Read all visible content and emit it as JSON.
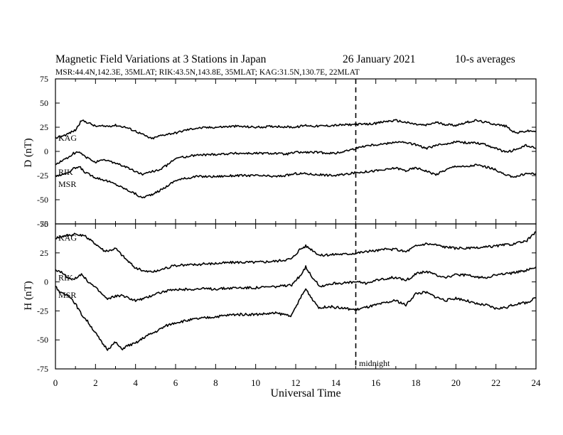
{
  "header": {
    "title": "Magnetic Field Variations at 3 Stations in Japan",
    "date": "26 January  2021",
    "averaging": "10-s averages",
    "stations_line": "MSR:44.4N,142.3E, 35MLAT;  RIK:43.5N,143.8E, 35MLAT;  KAG:31.5N,130.7E, 22MLAT"
  },
  "chart_data": [
    {
      "type": "line",
      "panel": "top",
      "ylabel": "D (nT)",
      "ylim": [
        -75,
        75
      ],
      "yticks": [
        75,
        50,
        25,
        0,
        -25,
        -50,
        -75
      ],
      "xlim": [
        0,
        24
      ],
      "series": [
        {
          "name": "KAG",
          "x": [
            0,
            0.5,
            1,
            1.3,
            1.6,
            2,
            2.5,
            3,
            3.5,
            4,
            4.5,
            4.8,
            5.2,
            5.6,
            6,
            6.5,
            7,
            8,
            9,
            10,
            11,
            12,
            12.5,
            13,
            14,
            15,
            15.5,
            16,
            16.5,
            17,
            17.5,
            18,
            18.5,
            19,
            19.5,
            20,
            20.5,
            21,
            21.5,
            22,
            22.5,
            23,
            23.5,
            24
          ],
          "y": [
            14,
            17,
            22,
            32,
            30,
            26,
            26,
            27,
            25,
            21,
            16,
            13,
            16,
            18,
            19,
            22,
            24,
            25,
            26,
            25,
            26,
            25,
            27,
            26,
            27,
            28,
            28,
            29,
            31,
            32,
            30,
            28,
            27,
            30,
            28,
            27,
            30,
            32,
            30,
            28,
            26,
            19,
            21,
            21
          ]
        },
        {
          "name": "RIK",
          "x": [
            0,
            0.3,
            0.6,
            0.9,
            1.2,
            1.5,
            2,
            2.5,
            3,
            3.5,
            4,
            4.4,
            4.8,
            5.2,
            5.6,
            6,
            7,
            8,
            9,
            10,
            11,
            11.5,
            12,
            12.5,
            13,
            14,
            15,
            15.5,
            16,
            16.5,
            17,
            17.5,
            18,
            18.5,
            19,
            19.5,
            20,
            20.5,
            21,
            21.5,
            22,
            22.5,
            23,
            23.5,
            24
          ],
          "y": [
            -14,
            -10,
            -7,
            -2,
            -1,
            -6,
            -11,
            -9,
            -12,
            -16,
            -21,
            -24,
            -21,
            -19,
            -14,
            -7,
            -4,
            -3,
            -2,
            -2,
            -2,
            -3,
            -1,
            -1,
            -1,
            -2,
            3,
            6,
            7,
            8,
            10,
            9,
            7,
            3,
            6,
            8,
            10,
            9,
            9,
            7,
            3,
            -1,
            2,
            6,
            3
          ]
        },
        {
          "name": "MSR",
          "x": [
            0,
            0.3,
            0.6,
            0.9,
            1.2,
            1.5,
            2,
            2.5,
            3,
            3.5,
            4,
            4.3,
            4.6,
            5,
            5.5,
            6,
            6.5,
            7,
            8,
            9,
            10,
            11,
            11.5,
            12,
            12.5,
            13,
            14,
            15,
            15.5,
            16,
            16.5,
            17,
            17.5,
            18,
            18.5,
            19,
            19.5,
            20,
            20.5,
            21,
            21.5,
            22,
            22.5,
            23,
            23.5,
            24
          ],
          "y": [
            -25,
            -24,
            -22,
            -18,
            -16,
            -22,
            -27,
            -30,
            -34,
            -39,
            -44,
            -48,
            -46,
            -43,
            -37,
            -30,
            -28,
            -26,
            -26,
            -25,
            -25,
            -26,
            -25,
            -23,
            -23,
            -24,
            -25,
            -22,
            -21,
            -20,
            -19,
            -17,
            -20,
            -17,
            -20,
            -24,
            -19,
            -15,
            -16,
            -14,
            -16,
            -19,
            -25,
            -26,
            -23,
            -23
          ]
        }
      ],
      "annotations": []
    },
    {
      "type": "line",
      "panel": "bottom",
      "ylabel": "H (nT)",
      "xlabel": "Universal Time",
      "ylim": [
        -75,
        50
      ],
      "yticks": [
        50,
        25,
        0,
        -25,
        -50,
        -75
      ],
      "xlim": [
        0,
        24
      ],
      "xticks": [
        0,
        2,
        4,
        6,
        8,
        10,
        12,
        14,
        16,
        18,
        20,
        22,
        24
      ],
      "series": [
        {
          "name": "KAG",
          "x": [
            0,
            0.5,
            1,
            1.5,
            2,
            2.5,
            3,
            3.5,
            4,
            4.5,
            5,
            5.5,
            6,
            7,
            8,
            9,
            10,
            11,
            11.8,
            12.2,
            12.5,
            12.8,
            13.2,
            13.6,
            14,
            14.5,
            15,
            15.5,
            16,
            16.5,
            17,
            17.5,
            18,
            18.5,
            19,
            19.5,
            20,
            20.5,
            21,
            21.5,
            22,
            22.5,
            23,
            23.5,
            24
          ],
          "y": [
            38,
            40,
            41,
            39,
            33,
            26,
            29,
            20,
            12,
            9,
            9,
            12,
            14,
            15,
            16,
            17,
            17,
            18,
            20,
            28,
            31,
            28,
            23,
            23,
            24,
            24,
            25,
            26,
            27,
            28,
            28,
            26,
            31,
            33,
            32,
            30,
            29,
            29,
            29,
            30,
            31,
            32,
            33,
            35,
            43
          ]
        },
        {
          "name": "RIK",
          "x": [
            0,
            0.3,
            0.7,
            1,
            1.3,
            1.6,
            2,
            2.3,
            2.6,
            3,
            3.3,
            3.7,
            4,
            4.5,
            5,
            5.5,
            6,
            7,
            8,
            9,
            10,
            11,
            11.8,
            12.2,
            12.5,
            12.8,
            13.2,
            13.6,
            14,
            14.5,
            15,
            15.5,
            16,
            16.5,
            17,
            17.5,
            18,
            18.5,
            19,
            19.5,
            20,
            20.5,
            21,
            21.5,
            22,
            22.5,
            23,
            23.5,
            24
          ],
          "y": [
            10,
            8,
            3,
            3,
            6,
            1,
            -5,
            -10,
            -15,
            -12,
            -12,
            -14,
            -16,
            -14,
            -10,
            -8,
            -7,
            -6,
            -6,
            -5,
            -5,
            -4,
            -3,
            5,
            13,
            5,
            -4,
            -2,
            -1,
            -1,
            0,
            -1,
            1,
            3,
            4,
            1,
            7,
            9,
            6,
            4,
            6,
            6,
            4,
            4,
            6,
            7,
            8,
            10,
            13
          ]
        },
        {
          "name": "MSR",
          "x": [
            0,
            0.3,
            0.7,
            1,
            1.3,
            1.6,
            2,
            2.3,
            2.6,
            3,
            3.3,
            3.6,
            4,
            4.5,
            5,
            5.5,
            6,
            7,
            8,
            9,
            10,
            11,
            11.8,
            12.2,
            12.5,
            12.8,
            13.2,
            13.6,
            14,
            14.5,
            15,
            15.5,
            16,
            16.5,
            17,
            17.5,
            18,
            18.5,
            19,
            19.5,
            20,
            20.5,
            21,
            21.5,
            22,
            22.5,
            23,
            23.5,
            24
          ],
          "y": [
            -4,
            -10,
            -12,
            -19,
            -28,
            -34,
            -44,
            -52,
            -58,
            -52,
            -58,
            -55,
            -53,
            -47,
            -43,
            -38,
            -35,
            -32,
            -30,
            -28,
            -28,
            -27,
            -29,
            -15,
            -6,
            -14,
            -23,
            -21,
            -22,
            -23,
            -24,
            -22,
            -20,
            -18,
            -16,
            -20,
            -10,
            -9,
            -13,
            -16,
            -14,
            -16,
            -19,
            -20,
            -23,
            -22,
            -19,
            -18,
            -14
          ]
        }
      ],
      "annotations": [
        "midnight"
      ]
    }
  ],
  "marker": {
    "time": 15,
    "label": "midnight"
  }
}
